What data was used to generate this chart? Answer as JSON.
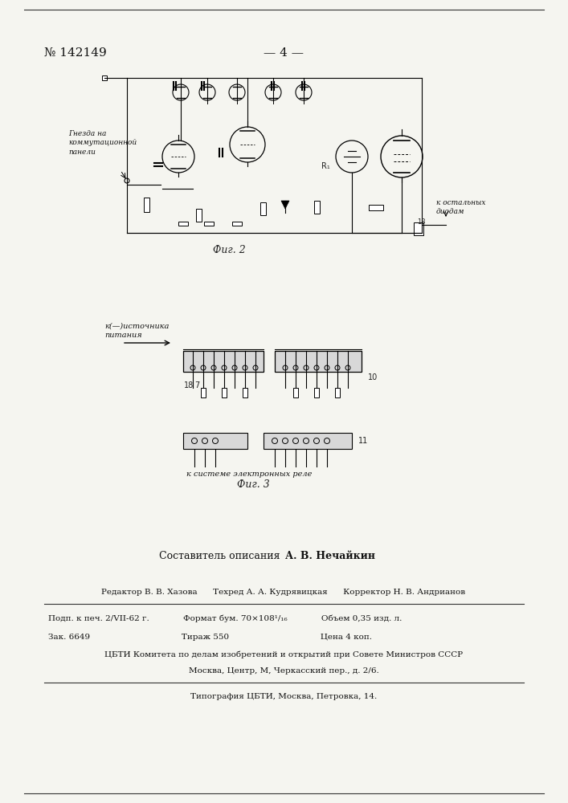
{
  "page_number": "№ 142149",
  "page_num_right": "— 4 —",
  "bg_color": "#f5f5f0",
  "fig2_label": "Фиг. 2",
  "fig3_label": "Фиг. 3",
  "label_gnezdo": "Гнезда на\nкоммутационной\nпанели",
  "label_kristal": "к остальных\nдиодам",
  "label_istochnik": "к(—)источника\nпитания",
  "label_sistema": "к системе электронных реле",
  "sestavitel_plain": "Составитель описания ",
  "sestavitel_bold": "А. В. Нечайкин",
  "editor_line": "Редактор В. В. Хазова      Техред А. А. Кудрявицкая      Корректор Н. В. Андрианов",
  "line1": "Подп. к печ. 2/VII-62 г.             Формат бум. 70×108¹/₁₆             Объем 0,35 изд. л.",
  "line2": "Зак. 6649                                   Тираж 550                                   Цена 4 коп.",
  "line3": "ЦБТИ Комитета по делам изобретений и открытий при Совете Министров СССР",
  "line4": "Москва, Центр, М, Черкасский пер., д. 2/6.",
  "line5": "Типография ЦБТИ, Москва, Петровка, 14."
}
